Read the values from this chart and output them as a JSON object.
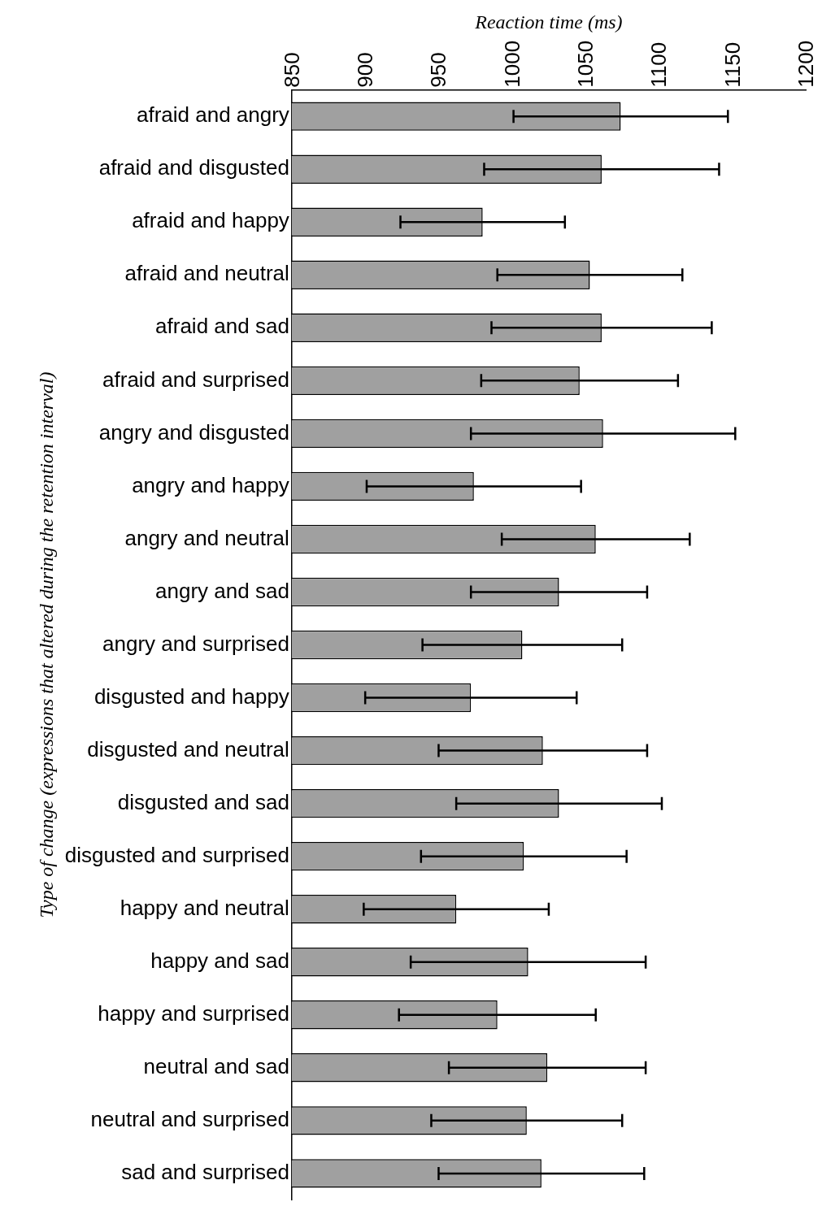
{
  "chart_data": {
    "type": "bar",
    "orientation": "horizontal",
    "xlabel": "Reaction time (ms)",
    "ylabel": "Type of change (expressions that altered during the retention interval)",
    "categories": [
      "afraid and angry",
      "afraid and disgusted",
      "afraid and happy",
      "afraid and neutral",
      "afraid and sad",
      "afraid and surprised",
      "angry and disgusted",
      "angry and happy",
      "angry and neutral",
      "angry and sad",
      "angry and surprised",
      "disgusted and happy",
      "disgusted and neutral",
      "disgusted and sad",
      "disgusted and surprised",
      "happy and neutral",
      "happy and sad",
      "happy and surprised",
      "neutral and sad",
      "neutral and surprised",
      "sad and surprised"
    ],
    "values": [
      1074,
      1061,
      980,
      1053,
      1061,
      1046,
      1062,
      974,
      1057,
      1032,
      1007,
      972,
      1021,
      1032,
      1008,
      962,
      1011,
      990,
      1024,
      1010,
      1020
    ],
    "errors": [
      73,
      80,
      56,
      63,
      75,
      67,
      90,
      73,
      64,
      60,
      68,
      72,
      71,
      70,
      70,
      63,
      80,
      67,
      67,
      65,
      70
    ],
    "color": "#a0a0a0",
    "xlim": [
      850,
      1200
    ],
    "xticks": [
      850,
      900,
      950,
      1000,
      1050,
      1100,
      1150,
      1200
    ],
    "grid": false
  }
}
